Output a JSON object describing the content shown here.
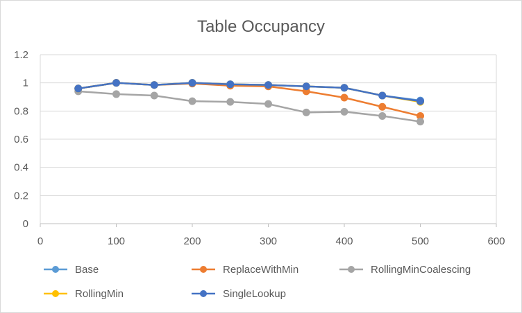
{
  "chart_data": {
    "type": "scatter",
    "title": "Table Occupancy",
    "xlabel": "",
    "ylabel": "",
    "xlim": [
      0,
      600
    ],
    "ylim": [
      0,
      1.2
    ],
    "xticks": [
      0,
      100,
      200,
      300,
      400,
      500,
      600
    ],
    "yticks": [
      0,
      0.2,
      0.4,
      0.6,
      0.8,
      1,
      1.2
    ],
    "xtick_labels": [
      "0",
      "100",
      "200",
      "300",
      "400",
      "500",
      "600"
    ],
    "ytick_labels": [
      "0",
      "0.2",
      "0.4",
      "0.6",
      "0.8",
      "1",
      "1.2"
    ],
    "grid": "horizontal",
    "legend_position": "bottom",
    "series": [
      {
        "name": "Base",
        "color": "#5B9BD5",
        "x": [
          50,
          100,
          150,
          200,
          250,
          300,
          350,
          400,
          450,
          500
        ],
        "y": [
          0.96,
          1.0,
          0.985,
          1.0,
          0.99,
          0.985,
          0.975,
          0.965,
          0.91,
          0.875
        ]
      },
      {
        "name": "ReplaceWithMin",
        "color": "#ED7D31",
        "x": [
          50,
          100,
          150,
          200,
          250,
          300,
          350,
          400,
          450,
          500
        ],
        "y": [
          0.96,
          1.0,
          0.985,
          0.995,
          0.98,
          0.975,
          0.94,
          0.895,
          0.83,
          0.765
        ]
      },
      {
        "name": "RollingMinCoalescing",
        "color": "#A5A5A5",
        "x": [
          50,
          100,
          150,
          200,
          250,
          300,
          350,
          400,
          450,
          500
        ],
        "y": [
          0.94,
          0.92,
          0.91,
          0.87,
          0.865,
          0.85,
          0.79,
          0.795,
          0.765,
          0.725
        ]
      },
      {
        "name": "RollingMin",
        "color": "#FFC000",
        "x": [
          50,
          100,
          150,
          200,
          250,
          300,
          350,
          400,
          450,
          500
        ],
        "y": [
          0.96,
          1.0,
          0.985,
          1.0,
          0.99,
          0.985,
          0.975,
          0.965,
          0.91,
          0.865
        ]
      },
      {
        "name": "SingleLookup",
        "color": "#4472C4",
        "x": [
          50,
          100,
          150,
          200,
          250,
          300,
          350,
          400,
          450,
          500
        ],
        "y": [
          0.96,
          1.0,
          0.985,
          1.0,
          0.99,
          0.985,
          0.975,
          0.965,
          0.91,
          0.87
        ]
      }
    ]
  }
}
